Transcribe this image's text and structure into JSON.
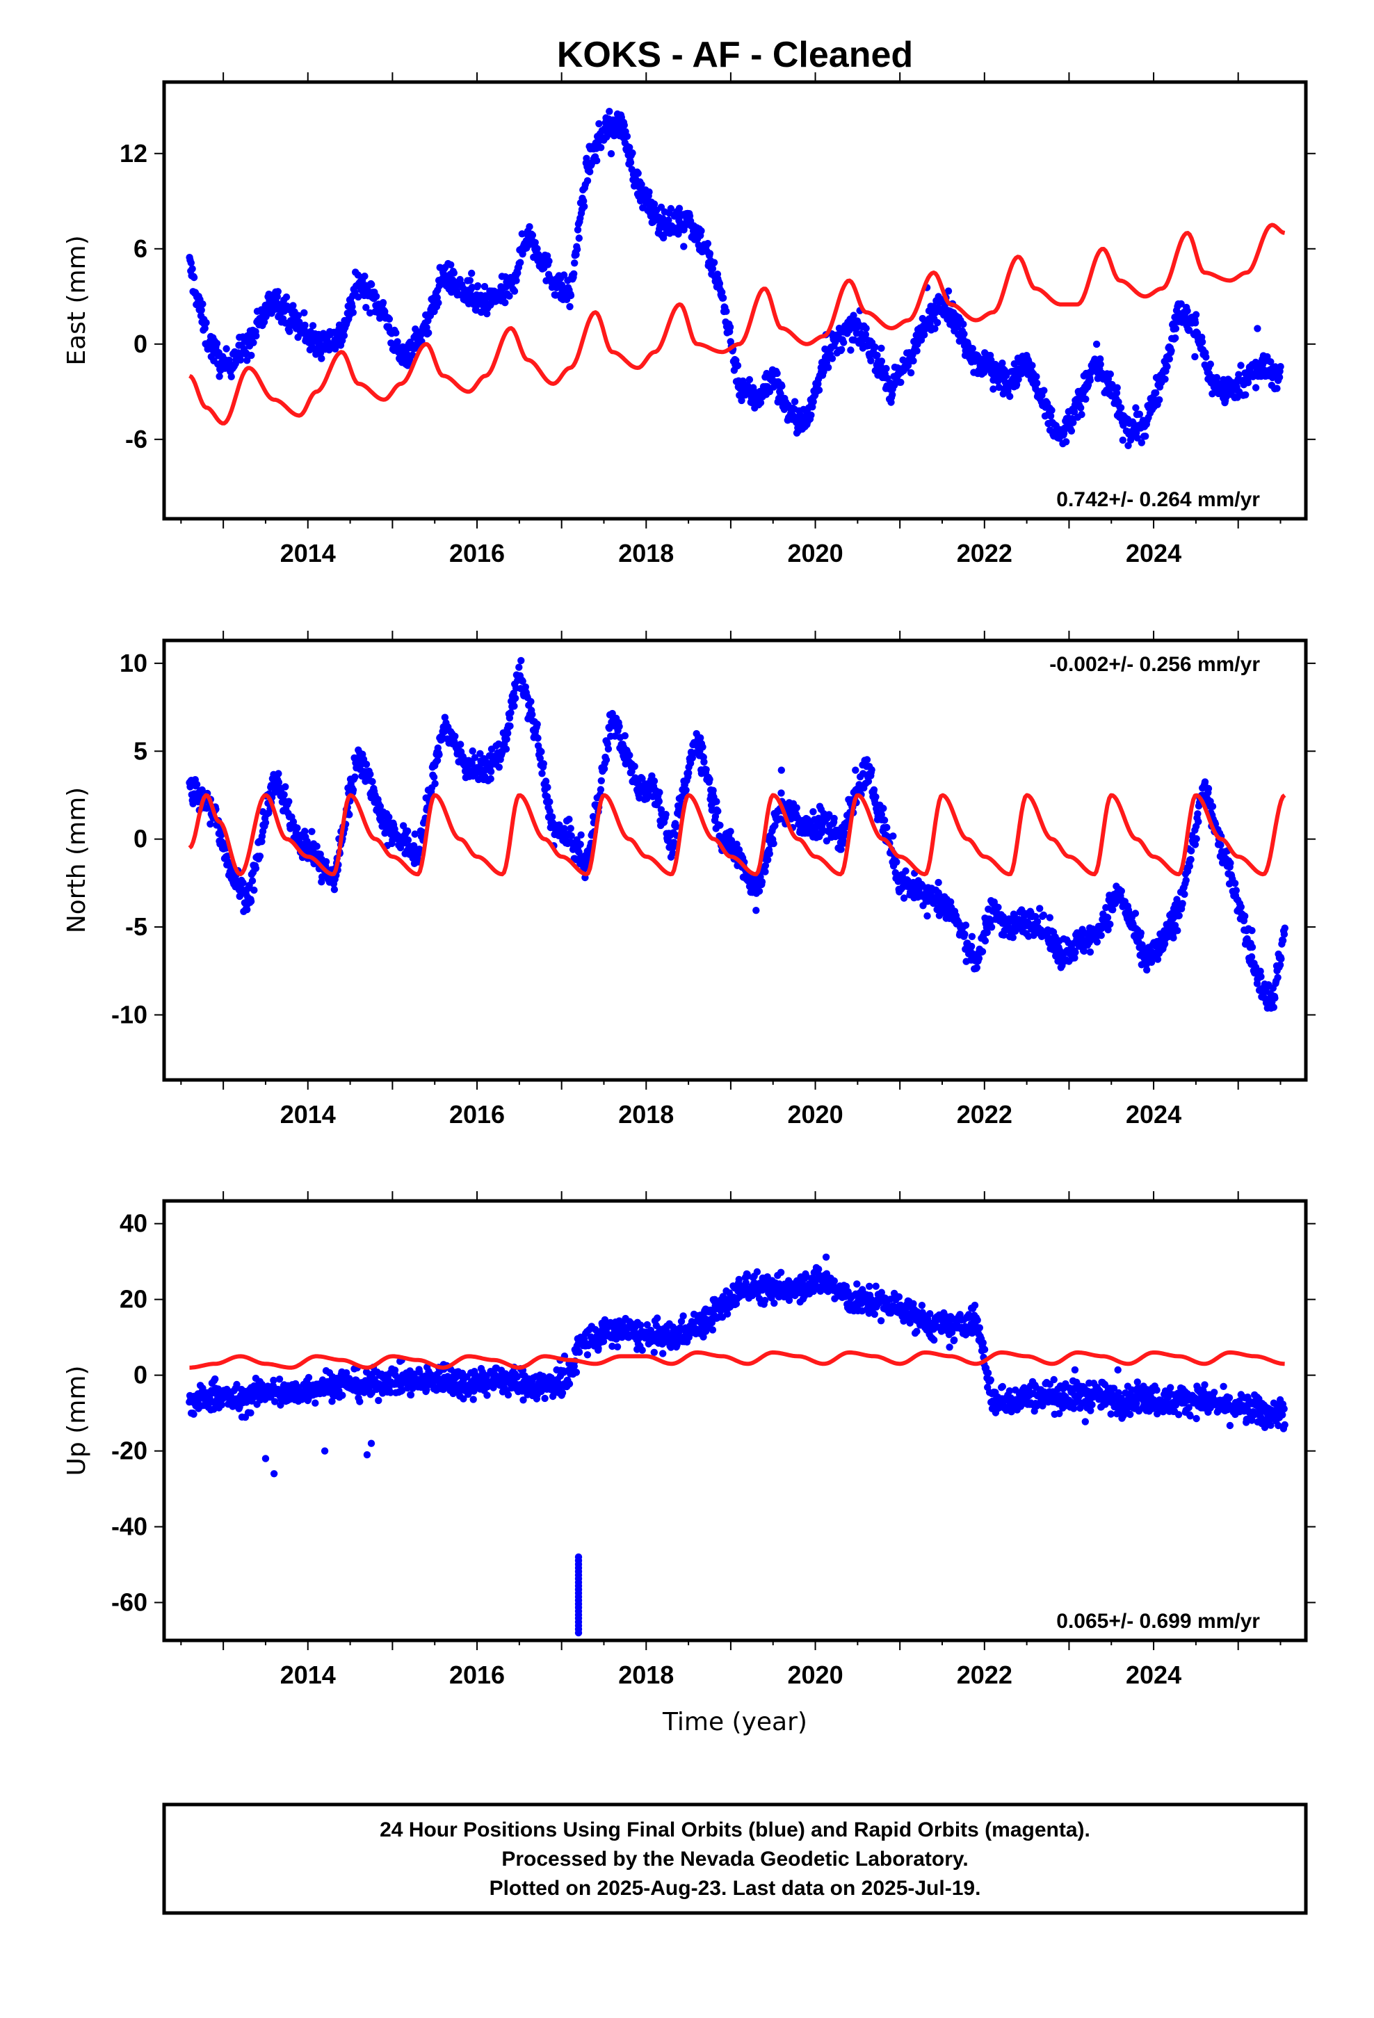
{
  "title": "KOKS  - AF - Cleaned",
  "colors": {
    "data": "#0000ff",
    "model": "#ff1a1a",
    "frame": "#000000"
  },
  "chart_data": [
    {
      "type": "scatter",
      "panel": "east",
      "ylabel": "East (mm)",
      "xlim": [
        2012.3,
        2025.8
      ],
      "ylim": [
        -11,
        16.5
      ],
      "yticks": [
        -6,
        0,
        6,
        12
      ],
      "xticks": [
        2014,
        2016,
        2018,
        2020,
        2022,
        2024
      ],
      "rate": "0.742+/- 0.264 mm/yr",
      "rate_position": "bottom-right",
      "series": [
        {
          "role": "data",
          "x": [
            2012.6,
            2012.8,
            2013.0,
            2013.3,
            2013.6,
            2013.9,
            2014.1,
            2014.4,
            2014.6,
            2014.9,
            2015.1,
            2015.4,
            2015.6,
            2015.9,
            2016.1,
            2016.4,
            2016.6,
            2016.9,
            2017.1,
            2017.3,
            2017.5,
            2017.7,
            2017.9,
            2018.1,
            2018.3,
            2018.5,
            2018.7,
            2018.9,
            2019.1,
            2019.3,
            2019.5,
            2019.7,
            2019.9,
            2020.1,
            2020.3,
            2020.5,
            2020.7,
            2020.9,
            2021.1,
            2021.3,
            2021.5,
            2021.7,
            2021.9,
            2022.1,
            2022.3,
            2022.5,
            2022.7,
            2022.9,
            2023.1,
            2023.3,
            2023.5,
            2023.7,
            2023.9,
            2024.1,
            2024.3,
            2024.5,
            2024.7,
            2024.9,
            2025.1,
            2025.3,
            2025.5
          ],
          "y": [
            5.0,
            0.5,
            -1.5,
            0.0,
            3.0,
            1.0,
            0.0,
            0.5,
            4.0,
            2.0,
            -1.0,
            1.0,
            4.5,
            3.0,
            2.5,
            3.5,
            7.0,
            4.0,
            3.0,
            11.0,
            13.5,
            14.0,
            10.0,
            8.0,
            7.5,
            8.0,
            6.0,
            3.0,
            -2.5,
            -3.5,
            -2.0,
            -4.5,
            -5.0,
            -1.0,
            0.5,
            1.0,
            -0.5,
            -3.0,
            -1.0,
            1.0,
            3.0,
            1.0,
            -1.0,
            -1.5,
            -2.5,
            -1.0,
            -4.0,
            -6.0,
            -4.0,
            -1.0,
            -3.0,
            -5.5,
            -5.0,
            -2.0,
            2.0,
            1.0,
            -2.5,
            -3.0,
            -2.0,
            -1.5,
            -2.0
          ]
        },
        {
          "role": "model",
          "x": [
            2012.6,
            2012.8,
            2013.0,
            2013.3,
            2013.6,
            2013.9,
            2014.1,
            2014.4,
            2014.6,
            2014.9,
            2015.1,
            2015.4,
            2015.6,
            2015.9,
            2016.1,
            2016.4,
            2016.6,
            2016.9,
            2017.1,
            2017.4,
            2017.6,
            2017.9,
            2018.1,
            2018.4,
            2018.6,
            2018.9,
            2019.1,
            2019.4,
            2019.6,
            2019.9,
            2020.1,
            2020.4,
            2020.6,
            2020.9,
            2021.1,
            2021.4,
            2021.6,
            2021.9,
            2022.1,
            2022.4,
            2022.6,
            2022.9,
            2023.1,
            2023.4,
            2023.6,
            2023.9,
            2024.1,
            2024.4,
            2024.6,
            2024.9,
            2025.1,
            2025.4,
            2025.55
          ],
          "y": [
            -2.0,
            -4.0,
            -5.0,
            -1.5,
            -3.5,
            -4.5,
            -3.0,
            -0.5,
            -2.5,
            -3.5,
            -2.5,
            0.0,
            -2.0,
            -3.0,
            -2.0,
            1.0,
            -1.0,
            -2.5,
            -1.5,
            2.0,
            -0.5,
            -1.5,
            -0.5,
            2.5,
            0.0,
            -0.5,
            0.0,
            3.5,
            1.0,
            0.0,
            0.5,
            4.0,
            2.0,
            1.0,
            1.5,
            4.5,
            2.5,
            1.5,
            2.0,
            5.5,
            3.5,
            2.5,
            2.5,
            6.0,
            4.0,
            3.0,
            3.5,
            7.0,
            4.5,
            4.0,
            4.5,
            7.5,
            7.0
          ]
        }
      ]
    },
    {
      "type": "scatter",
      "panel": "north",
      "ylabel": "North (mm)",
      "xlim": [
        2012.3,
        2025.8
      ],
      "ylim": [
        -13.7,
        11.3
      ],
      "yticks": [
        -10,
        -5,
        0,
        5,
        10
      ],
      "xticks": [
        2014,
        2016,
        2018,
        2020,
        2022,
        2024
      ],
      "rate": "-0.002+/- 0.256 mm/yr",
      "rate_position": "top-right",
      "series": [
        {
          "role": "data",
          "x": [
            2012.6,
            2012.9,
            2013.1,
            2013.3,
            2013.6,
            2013.9,
            2014.1,
            2014.3,
            2014.6,
            2014.9,
            2015.1,
            2015.3,
            2015.6,
            2015.9,
            2016.1,
            2016.3,
            2016.5,
            2016.7,
            2016.9,
            2017.1,
            2017.3,
            2017.6,
            2017.9,
            2018.1,
            2018.3,
            2018.6,
            2018.9,
            2019.1,
            2019.3,
            2019.6,
            2019.9,
            2020.1,
            2020.3,
            2020.6,
            2020.8,
            2021.0,
            2021.3,
            2021.6,
            2021.9,
            2022.1,
            2022.3,
            2022.6,
            2022.9,
            2023.1,
            2023.3,
            2023.6,
            2023.9,
            2024.1,
            2024.3,
            2024.6,
            2024.8,
            2025.0,
            2025.2,
            2025.4,
            2025.55
          ],
          "y": [
            3.0,
            1.5,
            -2.0,
            -3.5,
            3.5,
            0.0,
            -1.0,
            -2.5,
            5.0,
            1.0,
            0.0,
            -1.0,
            6.5,
            4.0,
            4.0,
            5.0,
            9.5,
            6.0,
            0.5,
            0.0,
            -1.5,
            7.0,
            3.0,
            3.0,
            -0.5,
            6.0,
            0.0,
            -1.0,
            -3.0,
            2.0,
            0.5,
            1.0,
            0.0,
            4.0,
            1.0,
            -2.5,
            -3.0,
            -4.0,
            -7.0,
            -4.0,
            -5.0,
            -4.5,
            -6.5,
            -6.0,
            -5.5,
            -3.0,
            -7.0,
            -6.0,
            -4.0,
            3.0,
            -0.5,
            -3.5,
            -7.5,
            -9.5,
            -5.0
          ]
        },
        {
          "role": "model",
          "x": [
            2012.6,
            2012.8,
            2012.95,
            2013.2,
            2013.5,
            2013.75,
            2014.0,
            2014.3,
            2014.5,
            2014.8,
            2015.0,
            2015.3,
            2015.5,
            2015.8,
            2016.0,
            2016.3,
            2016.5,
            2016.8,
            2017.0,
            2017.3,
            2017.5,
            2017.8,
            2018.0,
            2018.3,
            2018.5,
            2018.8,
            2019.0,
            2019.3,
            2019.5,
            2019.8,
            2020.0,
            2020.3,
            2020.5,
            2020.8,
            2021.0,
            2021.3,
            2021.5,
            2021.8,
            2022.0,
            2022.3,
            2022.5,
            2022.8,
            2023.0,
            2023.3,
            2023.5,
            2023.8,
            2024.0,
            2024.3,
            2024.5,
            2024.8,
            2025.0,
            2025.3,
            2025.55
          ],
          "y": [
            -0.5,
            2.5,
            1.0,
            -2.0,
            2.5,
            0.0,
            -1.0,
            -2.0,
            2.5,
            0.0,
            -1.0,
            -2.0,
            2.5,
            0.0,
            -1.0,
            -2.0,
            2.5,
            0.0,
            -1.0,
            -2.0,
            2.5,
            0.0,
            -1.0,
            -2.0,
            2.5,
            0.0,
            -1.0,
            -2.0,
            2.5,
            0.0,
            -1.0,
            -2.0,
            2.5,
            0.0,
            -1.0,
            -2.0,
            2.5,
            0.0,
            -1.0,
            -2.0,
            2.5,
            0.0,
            -1.0,
            -2.0,
            2.5,
            0.0,
            -1.0,
            -2.0,
            2.5,
            0.0,
            -1.0,
            -2.0,
            2.5
          ]
        }
      ]
    },
    {
      "type": "scatter",
      "panel": "up",
      "ylabel": "Up (mm)",
      "xlabel": "Time (year)",
      "xlim": [
        2012.3,
        2025.8
      ],
      "ylim": [
        -70,
        46
      ],
      "yticks": [
        -60,
        -40,
        -20,
        0,
        20,
        40
      ],
      "xticks": [
        2014,
        2016,
        2018,
        2020,
        2022,
        2024
      ],
      "rate": "0.065+/- 0.699 mm/yr",
      "rate_position": "bottom-right",
      "series": [
        {
          "role": "data",
          "x": [
            2012.6,
            2012.9,
            2013.2,
            2013.5,
            2013.8,
            2014.1,
            2014.4,
            2014.7,
            2015.0,
            2015.3,
            2015.6,
            2015.9,
            2016.2,
            2016.5,
            2016.8,
            2017.1,
            2017.2,
            2017.4,
            2017.7,
            2018.0,
            2018.3,
            2018.6,
            2018.9,
            2019.2,
            2019.5,
            2019.8,
            2020.1,
            2020.4,
            2020.7,
            2021.0,
            2021.3,
            2021.6,
            2021.9,
            2022.1,
            2022.4,
            2022.7,
            2023.0,
            2023.3,
            2023.6,
            2023.9,
            2024.2,
            2024.5,
            2024.8,
            2025.1,
            2025.4,
            2025.55
          ],
          "y": [
            -8,
            -5,
            -7,
            -4,
            -5,
            -3,
            -2,
            -3,
            -1,
            -2,
            -1,
            -2,
            -1,
            -2,
            -3,
            -1,
            8,
            10,
            12,
            10,
            10,
            13,
            18,
            24,
            22,
            24,
            25,
            20,
            19,
            18,
            14,
            12,
            15,
            -7,
            -6,
            -5,
            -6,
            -5,
            -7,
            -6,
            -7,
            -6,
            -8,
            -9,
            -10,
            -10
          ]
        },
        {
          "role": "model",
          "x": [
            2012.6,
            2012.9,
            2013.2,
            2013.5,
            2013.8,
            2014.1,
            2014.4,
            2014.7,
            2015.0,
            2015.3,
            2015.6,
            2015.9,
            2016.2,
            2016.5,
            2016.8,
            2017.1,
            2017.4,
            2017.7,
            2018.0,
            2018.3,
            2018.6,
            2018.9,
            2019.2,
            2019.5,
            2019.8,
            2020.1,
            2020.4,
            2020.7,
            2021.0,
            2021.3,
            2021.6,
            2021.9,
            2022.2,
            2022.5,
            2022.8,
            2023.1,
            2023.4,
            2023.7,
            2024.0,
            2024.3,
            2024.6,
            2024.9,
            2025.2,
            2025.55
          ],
          "y": [
            2,
            3,
            5,
            3,
            2,
            5,
            4,
            2,
            5,
            4,
            2,
            5,
            4,
            2,
            5,
            4,
            3,
            5,
            5,
            3,
            6,
            5,
            3,
            6,
            5,
            3,
            6,
            5,
            3,
            6,
            5,
            3,
            6,
            5,
            3,
            6,
            5,
            3,
            6,
            5,
            3,
            6,
            5,
            3
          ]
        }
      ]
    }
  ],
  "caption": {
    "line1": "24 Hour Positions Using Final Orbits (blue) and Rapid Orbits (magenta).",
    "line2": "Processed by the Nevada Geodetic Laboratory.",
    "line3": "Plotted on 2025-Aug-23. Last data on 2025-Jul-19."
  }
}
